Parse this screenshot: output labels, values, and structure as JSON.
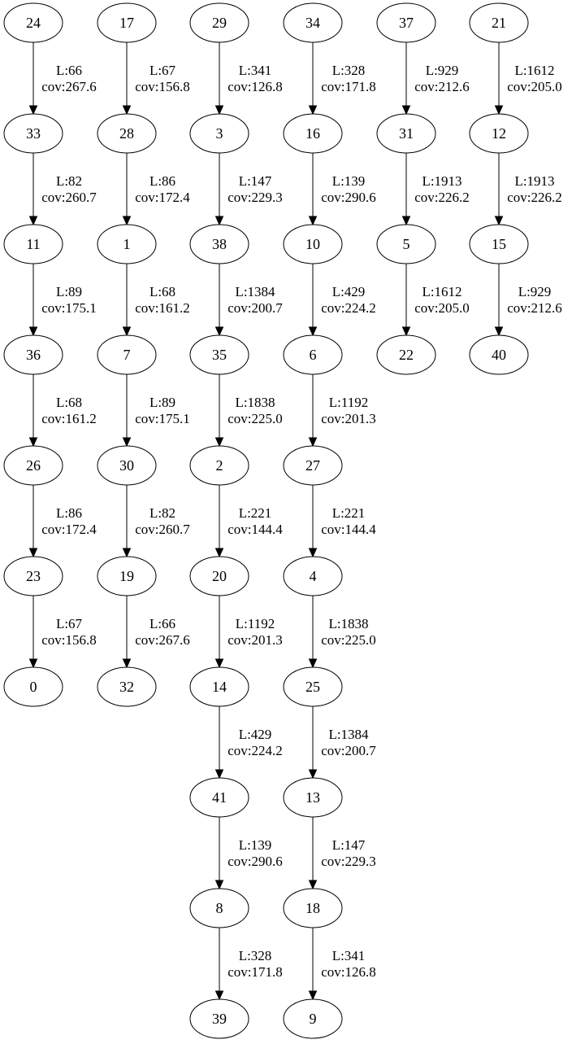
{
  "chains": [
    {
      "nodes": [
        "24",
        "33",
        "11",
        "36",
        "26",
        "23",
        "0"
      ],
      "edges": [
        {
          "length": "L:66",
          "coverage": "cov:267.6"
        },
        {
          "length": "L:82",
          "coverage": "cov:260.7"
        },
        {
          "length": "L:89",
          "coverage": "cov:175.1"
        },
        {
          "length": "L:68",
          "coverage": "cov:161.2"
        },
        {
          "length": "L:86",
          "coverage": "cov:172.4"
        },
        {
          "length": "L:67",
          "coverage": "cov:156.8"
        }
      ]
    },
    {
      "nodes": [
        "17",
        "28",
        "1",
        "7",
        "30",
        "19",
        "32"
      ],
      "edges": [
        {
          "length": "L:67",
          "coverage": "cov:156.8"
        },
        {
          "length": "L:86",
          "coverage": "cov:172.4"
        },
        {
          "length": "L:68",
          "coverage": "cov:161.2"
        },
        {
          "length": "L:89",
          "coverage": "cov:175.1"
        },
        {
          "length": "L:82",
          "coverage": "cov:260.7"
        },
        {
          "length": "L:66",
          "coverage": "cov:267.6"
        }
      ]
    },
    {
      "nodes": [
        "29",
        "3",
        "38",
        "35",
        "2",
        "20",
        "14",
        "41",
        "8",
        "39"
      ],
      "edges": [
        {
          "length": "L:341",
          "coverage": "cov:126.8"
        },
        {
          "length": "L:147",
          "coverage": "cov:229.3"
        },
        {
          "length": "L:1384",
          "coverage": "cov:200.7"
        },
        {
          "length": "L:1838",
          "coverage": "cov:225.0"
        },
        {
          "length": "L:221",
          "coverage": "cov:144.4"
        },
        {
          "length": "L:1192",
          "coverage": "cov:201.3"
        },
        {
          "length": "L:429",
          "coverage": "cov:224.2"
        },
        {
          "length": "L:139",
          "coverage": "cov:290.6"
        },
        {
          "length": "L:328",
          "coverage": "cov:171.8"
        }
      ]
    },
    {
      "nodes": [
        "34",
        "16",
        "10",
        "6",
        "27",
        "4",
        "25",
        "13",
        "18",
        "9"
      ],
      "edges": [
        {
          "length": "L:328",
          "coverage": "cov:171.8"
        },
        {
          "length": "L:139",
          "coverage": "cov:290.6"
        },
        {
          "length": "L:429",
          "coverage": "cov:224.2"
        },
        {
          "length": "L:1192",
          "coverage": "cov:201.3"
        },
        {
          "length": "L:221",
          "coverage": "cov:144.4"
        },
        {
          "length": "L:1838",
          "coverage": "cov:225.0"
        },
        {
          "length": "L:1384",
          "coverage": "cov:200.7"
        },
        {
          "length": "L:147",
          "coverage": "cov:229.3"
        },
        {
          "length": "L:341",
          "coverage": "cov:126.8"
        }
      ]
    },
    {
      "nodes": [
        "37",
        "31",
        "5",
        "22"
      ],
      "edges": [
        {
          "length": "L:929",
          "coverage": "cov:212.6"
        },
        {
          "length": "L:1913",
          "coverage": "cov:226.2"
        },
        {
          "length": "L:1612",
          "coverage": "cov:205.0"
        }
      ]
    },
    {
      "nodes": [
        "21",
        "12",
        "15",
        "40"
      ],
      "edges": [
        {
          "length": "L:1612",
          "coverage": "cov:205.0"
        },
        {
          "length": "L:1913",
          "coverage": "cov:226.2"
        },
        {
          "length": "L:929",
          "coverage": "cov:212.6"
        }
      ]
    }
  ]
}
